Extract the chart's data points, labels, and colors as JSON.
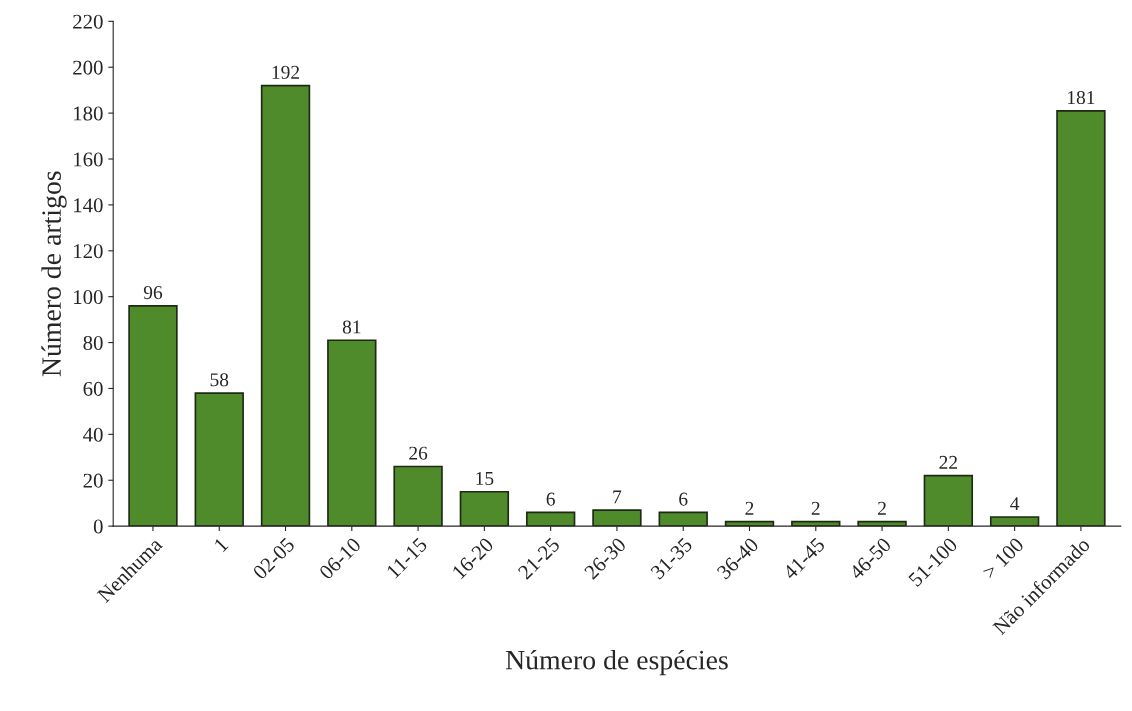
{
  "chart_data": {
    "type": "bar",
    "xlabel": "Número de espécies",
    "ylabel": "Número de artigos",
    "categories": [
      "Nenhuma",
      "1",
      "02-05",
      "06-10",
      "11-15",
      "16-20",
      "21-25",
      "26-30",
      "31-35",
      "36-40",
      "41-45",
      "46-50",
      "51-100",
      "> 100",
      "Não informado"
    ],
    "values": [
      96,
      58,
      192,
      81,
      26,
      15,
      6,
      7,
      6,
      2,
      2,
      2,
      22,
      4,
      181
    ],
    "color": "#4f8a2b",
    "ylim": [
      0,
      220
    ],
    "yticks": [
      0,
      20,
      40,
      60,
      80,
      100,
      120,
      140,
      160,
      180,
      200,
      220
    ],
    "data_labels": true,
    "grid": false,
    "legend": false
  }
}
